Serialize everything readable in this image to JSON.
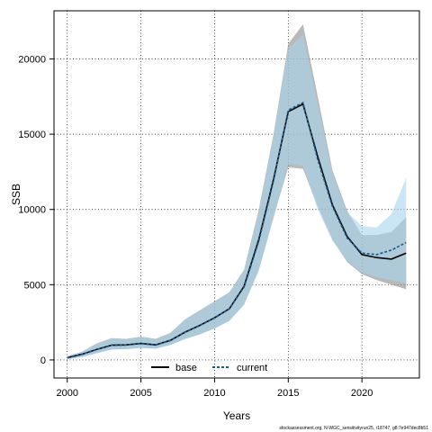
{
  "chart_data": {
    "type": "line",
    "xlabel": "Years",
    "ylabel": "SSB",
    "xlim": [
      1999.1,
      2023.9
    ],
    "ylim": [
      -1200,
      23200
    ],
    "xticks": [
      2000,
      2005,
      2010,
      2015,
      2020
    ],
    "yticks": [
      0,
      5000,
      10000,
      15000,
      20000
    ],
    "grid": true,
    "legend_position": "bottom-center",
    "x": [
      2000,
      2001,
      2002,
      2003,
      2004,
      2005,
      2006,
      2007,
      2008,
      2009,
      2010,
      2011,
      2012,
      2013,
      2014,
      2015,
      2016,
      2017,
      2018,
      2019,
      2020,
      2021,
      2022,
      2023
    ],
    "series": [
      {
        "name": "base",
        "color": "#000000",
        "line_style": "solid",
        "band_color": "#8a8a8a",
        "values": [
          150,
          380,
          700,
          980,
          1000,
          1100,
          1000,
          1300,
          1850,
          2300,
          2800,
          3400,
          4900,
          8000,
          12000,
          16500,
          17000,
          13500,
          10300,
          8200,
          7000,
          6800,
          6700,
          7100
        ],
        "lower": [
          50,
          200,
          450,
          700,
          720,
          800,
          750,
          1000,
          1400,
          1700,
          2100,
          2600,
          3700,
          6000,
          9500,
          12800,
          12700,
          10200,
          8000,
          6500,
          5700,
          5300,
          5000,
          4700
        ],
        "upper": [
          250,
          550,
          1100,
          1450,
          1400,
          1550,
          1400,
          1800,
          2700,
          3300,
          3900,
          4500,
          6000,
          10000,
          15000,
          21000,
          22300,
          17500,
          12600,
          9900,
          8300,
          8300,
          8500,
          9500
        ]
      },
      {
        "name": "current",
        "color": "#1a5a8a",
        "line_style": "dashed",
        "band_color": "#a6d3ec",
        "values": [
          140,
          370,
          690,
          970,
          990,
          1090,
          990,
          1290,
          1840,
          2290,
          2790,
          3390,
          4850,
          7900,
          11900,
          16600,
          17100,
          13300,
          10200,
          8100,
          7100,
          7000,
          7300,
          7800
        ],
        "lower": [
          45,
          190,
          440,
          690,
          710,
          790,
          740,
          990,
          1390,
          1690,
          2090,
          2590,
          3650,
          5900,
          9400,
          13000,
          12900,
          10000,
          7900,
          6600,
          5800,
          5500,
          5300,
          5100
        ],
        "upper": [
          240,
          540,
          1090,
          1440,
          1390,
          1540,
          1390,
          1790,
          2690,
          3290,
          3890,
          4490,
          5950,
          9900,
          14900,
          20700,
          21600,
          17000,
          12400,
          9800,
          8900,
          8800,
          9700,
          12100
        ]
      }
    ]
  },
  "caption": "stockassessment.org, N-WGC_sensitivityrun25, r18747, g8:7e947dec8b51"
}
